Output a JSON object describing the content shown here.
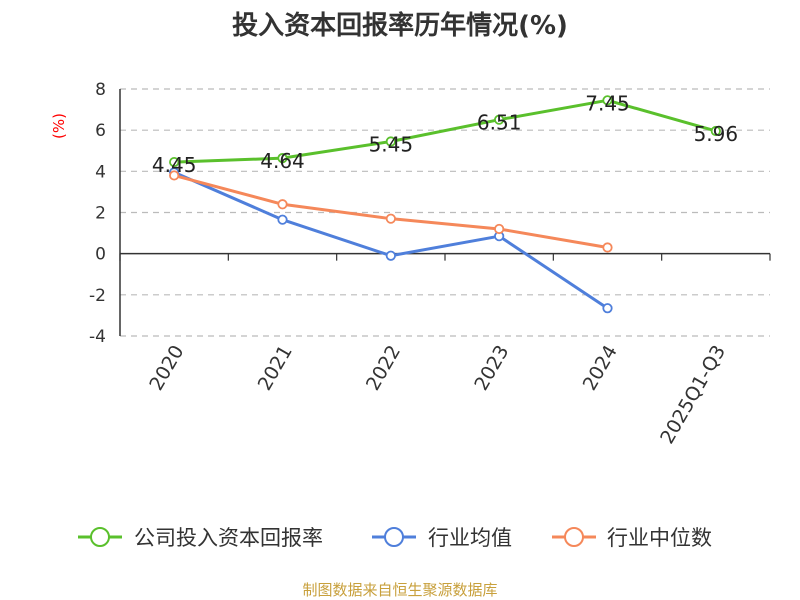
{
  "chart_data": {
    "type": "line",
    "title": "投入资本回报率历年情况(%)",
    "ylabel": "(%)",
    "xlabel": "",
    "categories": [
      "2020",
      "2021",
      "2022",
      "2023",
      "2024",
      "2025Q1-Q3"
    ],
    "ylim": [
      -4,
      8
    ],
    "yticks": [
      8,
      6,
      4,
      2,
      0,
      -2,
      -4
    ],
    "grid": true,
    "legend_position": "bottom",
    "series": [
      {
        "name": "公司投入资本回报率",
        "color": "#5ac02c",
        "values": [
          4.45,
          4.64,
          5.45,
          6.51,
          7.45,
          5.96
        ],
        "labels": [
          "4.45",
          "4.64",
          "5.45",
          "6.51",
          "7.45",
          "5.96"
        ]
      },
      {
        "name": "行业均值",
        "color": "#4f7fdb",
        "values": [
          3.95,
          1.65,
          -0.1,
          0.85,
          -2.65,
          null
        ]
      },
      {
        "name": "行业中位数",
        "color": "#f5885a",
        "values": [
          3.8,
          2.4,
          1.7,
          1.2,
          0.3,
          null
        ]
      }
    ],
    "source": "制图数据来自恒生聚源数据库"
  }
}
